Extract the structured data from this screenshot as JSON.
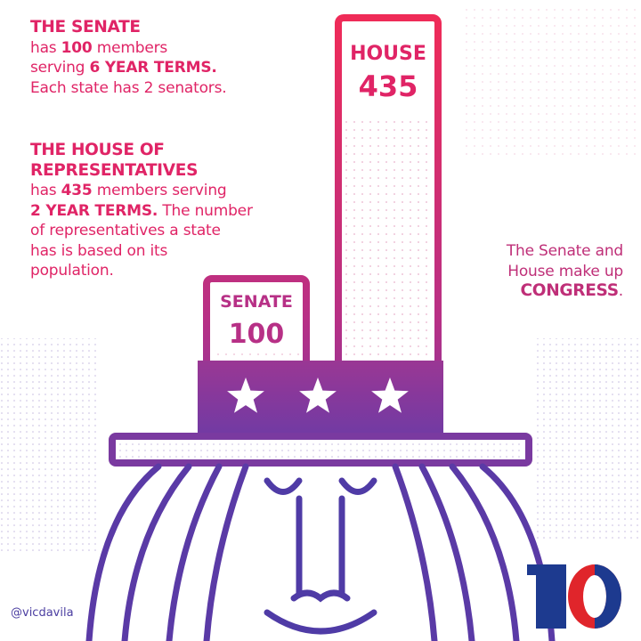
{
  "senate_text": {
    "heading": "THE SENATE",
    "line2_pre": "has ",
    "line2_bold": "100",
    "line2_post": " members",
    "line3_pre": "serving ",
    "line3_bold": "6 YEAR TERMS.",
    "line4": "Each state has 2 senators."
  },
  "house_text": {
    "heading1": "THE HOUSE OF",
    "heading2": "REPRESENTATIVES",
    "line3_pre": "has ",
    "line3_bold": "435",
    "line3_post": " members serving",
    "line4_bold": "2 YEAR TERMS.",
    "line4_post": " The number",
    "line5": "of representatives a state",
    "line6": "has is based on its",
    "line7": "population."
  },
  "congress_text": {
    "line1": "The Senate and",
    "line2": "House make up",
    "line3": "CONGRESS",
    "line3_post": "."
  },
  "bars": {
    "house_label": "HOUSE",
    "house_value": "435",
    "senate_label": "SENATE",
    "senate_value": "100"
  },
  "credit": "@vicdavila",
  "logo_text": "10",
  "colors": {
    "pink": "#e02466",
    "purple": "#8a3a9c",
    "blue": "#3b3ea8",
    "logo_red": "#e0252b",
    "logo_blue": "#1d3a8f"
  }
}
